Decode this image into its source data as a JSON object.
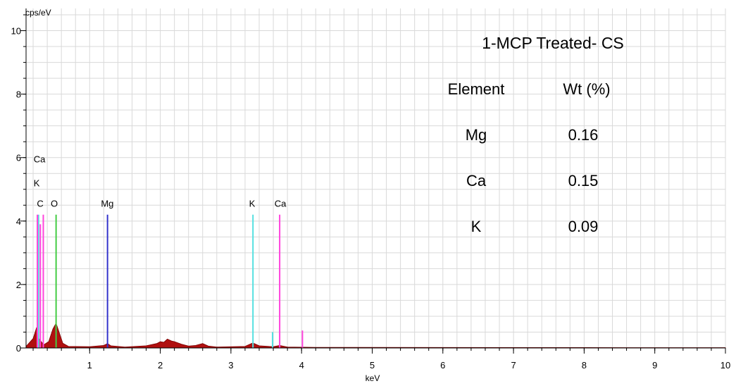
{
  "chart_data": {
    "type": "line",
    "title": "1-MCP Treated- CS",
    "xlabel": "keV",
    "ylabel": "cps/eV",
    "xlim": [
      0.1,
      10
    ],
    "ylim": [
      0,
      10.7
    ],
    "x_ticks": [
      1,
      2,
      3,
      4,
      5,
      6,
      7,
      8,
      9,
      10
    ],
    "y_ticks": [
      0,
      2,
      4,
      6,
      8,
      10
    ],
    "grid": true,
    "series": [
      {
        "values": [
          [
            0.1,
            0.05
          ],
          [
            0.2,
            0.3
          ],
          [
            0.25,
            0.65
          ],
          [
            0.28,
            0.3
          ],
          [
            0.35,
            0.1
          ],
          [
            0.42,
            0.2
          ],
          [
            0.48,
            0.6
          ],
          [
            0.525,
            0.78
          ],
          [
            0.56,
            0.55
          ],
          [
            0.62,
            0.15
          ],
          [
            0.7,
            0.05
          ],
          [
            1.0,
            0.04
          ],
          [
            1.2,
            0.08
          ],
          [
            1.253,
            0.14
          ],
          [
            1.3,
            0.07
          ],
          [
            1.5,
            0.03
          ],
          [
            1.65,
            0.05
          ],
          [
            1.8,
            0.07
          ],
          [
            1.95,
            0.14
          ],
          [
            2.0,
            0.2
          ],
          [
            2.05,
            0.18
          ],
          [
            2.1,
            0.28
          ],
          [
            2.16,
            0.22
          ],
          [
            2.2,
            0.2
          ],
          [
            2.3,
            0.12
          ],
          [
            2.4,
            0.06
          ],
          [
            2.5,
            0.08
          ],
          [
            2.6,
            0.14
          ],
          [
            2.68,
            0.06
          ],
          [
            2.8,
            0.03
          ],
          [
            3.2,
            0.05
          ],
          [
            3.31,
            0.16
          ],
          [
            3.4,
            0.07
          ],
          [
            3.6,
            0.04
          ],
          [
            3.69,
            0.08
          ],
          [
            3.8,
            0.03
          ],
          [
            4.2,
            0.02
          ],
          [
            6.0,
            0.015
          ],
          [
            8.0,
            0.012
          ],
          [
            10.0,
            0.01
          ]
        ]
      }
    ],
    "peak_lines": [
      {
        "element": "C",
        "x": 0.277,
        "height": 4.2,
        "color": "#55e0e0"
      },
      {
        "element": "Ca",
        "x": 0.302,
        "height": 3.9,
        "color": "#ff44dd"
      },
      {
        "element": "Ca",
        "x": 0.344,
        "height": 4.2,
        "color": "#ff44dd"
      },
      {
        "element": "K",
        "x": 0.26,
        "height": 4.2,
        "color": "#ff44dd"
      },
      {
        "element": "O",
        "x": 0.525,
        "height": 4.2,
        "color": "#44cc44"
      },
      {
        "element": "Mg",
        "x": 1.253,
        "height": 4.2,
        "color": "#3333cc"
      },
      {
        "element": "K",
        "x": 3.312,
        "height": 4.2,
        "color": "#55e0e0"
      },
      {
        "element": "K",
        "x": 3.589,
        "height": 0.5,
        "color": "#55e0e0"
      },
      {
        "element": "Ca",
        "x": 3.69,
        "height": 4.2,
        "color": "#ff44dd"
      },
      {
        "element": "Ca",
        "x": 4.012,
        "height": 0.55,
        "color": "#ff44dd"
      }
    ],
    "peak_labels": [
      {
        "text": "Ca",
        "x": 0.29,
        "y": 5.85
      },
      {
        "text": "K",
        "x": 0.25,
        "y": 5.1
      },
      {
        "text": "C",
        "x": 0.3,
        "y": 4.45
      },
      {
        "text": "O",
        "x": 0.5,
        "y": 4.45
      },
      {
        "text": "Mg",
        "x": 1.25,
        "y": 4.45
      },
      {
        "text": "K",
        "x": 3.3,
        "y": 4.45
      },
      {
        "text": "Ca",
        "x": 3.7,
        "y": 4.45
      }
    ],
    "table": {
      "headers": [
        "Element",
        "Wt (%)"
      ],
      "rows": [
        [
          "Mg",
          "0.16"
        ],
        [
          "Ca",
          "0.15"
        ],
        [
          "K",
          "0.09"
        ]
      ]
    },
    "colors": {
      "spectrum_fill": "#b01010",
      "spectrum_stroke": "#7a0000",
      "grid": "#d9d9d9",
      "axis": "#000000"
    }
  }
}
